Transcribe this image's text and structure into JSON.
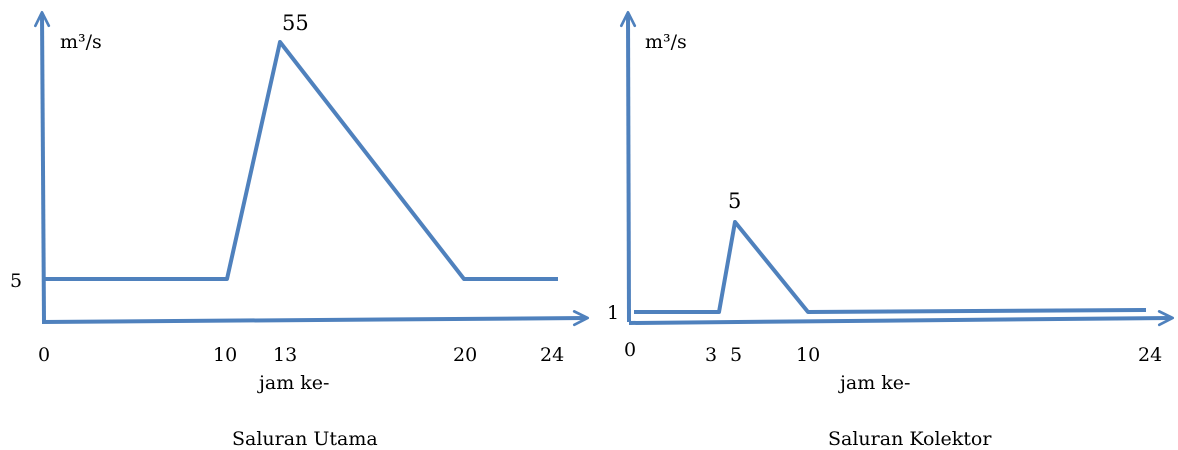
{
  "line_color": "#4f81bd",
  "chart_data": [
    {
      "type": "line",
      "title": "Saluran Utama",
      "xlabel": "jam ke-",
      "ylabel": "m³/s",
      "x_ticks": [
        "0",
        "10",
        "13",
        "20",
        "24"
      ],
      "y_ticks": [
        "5"
      ],
      "peak_label": "55",
      "points": [
        {
          "x": 0,
          "y": 5
        },
        {
          "x": 10,
          "y": 5
        },
        {
          "x": 13,
          "y": 55
        },
        {
          "x": 20,
          "y": 5
        },
        {
          "x": 24,
          "y": 5
        }
      ]
    },
    {
      "type": "line",
      "title": "Saluran Kolektor",
      "xlabel": "jam ke-",
      "ylabel": "m³/s",
      "x_ticks": [
        "0",
        "3",
        "5",
        "10",
        "24"
      ],
      "y_ticks": [
        "1"
      ],
      "peak_label": "5",
      "points": [
        {
          "x": 0,
          "y": 1
        },
        {
          "x": 3,
          "y": 1
        },
        {
          "x": 5,
          "y": 5
        },
        {
          "x": 10,
          "y": 1
        },
        {
          "x": 24,
          "y": 1
        }
      ]
    }
  ]
}
